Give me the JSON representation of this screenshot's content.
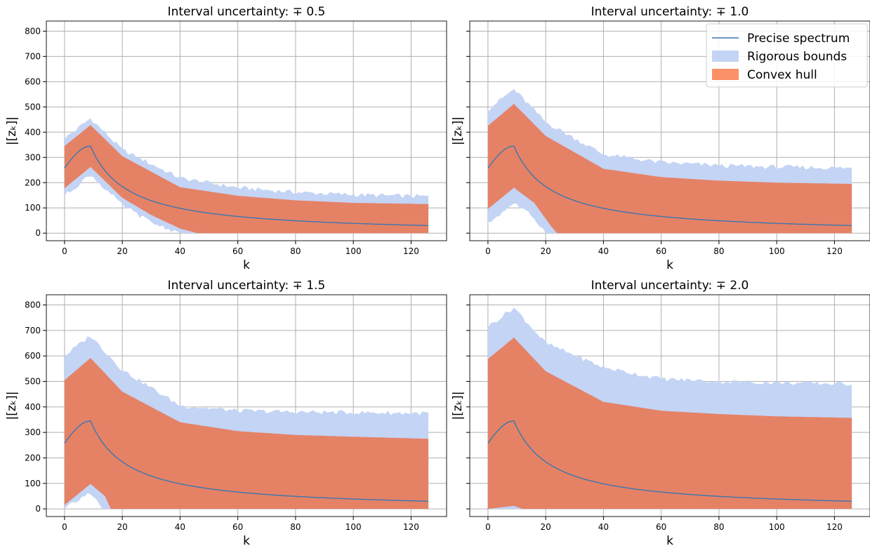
{
  "figure": {
    "legend": {
      "placement": "upper-right of top-right subplot",
      "entries": [
        "Precise spectrum",
        "Rigorous bounds",
        "Convex hull"
      ]
    },
    "colors": {
      "precise": "#3b76af",
      "rigorous": "#c3d4f5",
      "hull": "#e58266",
      "hull_legend": "#fb9167",
      "grid": "#b0b0b0"
    }
  },
  "chart_data": [
    {
      "type": "area",
      "title": "Interval uncertainty: ∓ 0.5",
      "xlabel": "k",
      "ylabel": "|[z_k]|",
      "ylabel_display": "|[zₖ]|",
      "xlim": [
        -6.3,
        132.3
      ],
      "ylim": [
        -30,
        840
      ],
      "xticks": [
        0,
        20,
        40,
        60,
        80,
        100,
        120
      ],
      "yticks": [
        0,
        100,
        200,
        300,
        400,
        500,
        600,
        700,
        800
      ],
      "show_y_ticklabels": true,
      "show_legend": false,
      "grid": true,
      "x_range": [
        0,
        126
      ],
      "precise": {
        "start": 258,
        "peak_k": 9,
        "peak": 345,
        "end": 30
      },
      "hull_upper": [
        [
          0,
          345
        ],
        [
          9,
          428
        ],
        [
          20,
          305
        ],
        [
          40,
          182
        ],
        [
          60,
          148
        ],
        [
          80,
          130
        ],
        [
          100,
          120
        ],
        [
          126,
          115
        ]
      ],
      "hull_lower": [
        [
          0,
          178
        ],
        [
          9,
          262
        ],
        [
          20,
          140
        ],
        [
          30,
          72
        ],
        [
          40,
          18
        ],
        [
          46,
          0
        ],
        [
          126,
          0
        ]
      ],
      "rigorous_upper": [
        [
          0,
          375
        ],
        [
          9,
          455
        ],
        [
          20,
          330
        ],
        [
          40,
          218
        ],
        [
          60,
          180
        ],
        [
          80,
          162
        ],
        [
          100,
          152
        ],
        [
          126,
          145
        ]
      ],
      "rigorous_lower": [
        [
          0,
          148
        ],
        [
          9,
          232
        ],
        [
          20,
          110
        ],
        [
          30,
          42
        ],
        [
          40,
          0
        ],
        [
          126,
          0
        ]
      ]
    },
    {
      "type": "area",
      "title": "Interval uncertainty: ∓ 1.0",
      "xlabel": "k",
      "ylabel": "|[z_k]|",
      "ylabel_display": "|[zₖ]|",
      "xlim": [
        -6.3,
        132.3
      ],
      "ylim": [
        -30,
        840
      ],
      "xticks": [
        0,
        20,
        40,
        60,
        80,
        100,
        120
      ],
      "yticks": [
        0,
        100,
        200,
        300,
        400,
        500,
        600,
        700,
        800
      ],
      "show_y_ticklabels": false,
      "show_legend": true,
      "grid": true,
      "x_range": [
        0,
        126
      ],
      "precise": {
        "start": 258,
        "peak_k": 9,
        "peak": 345,
        "end": 30
      },
      "hull_upper": [
        [
          0,
          425
        ],
        [
          9,
          512
        ],
        [
          20,
          385
        ],
        [
          40,
          255
        ],
        [
          60,
          222
        ],
        [
          80,
          208
        ],
        [
          100,
          200
        ],
        [
          126,
          195
        ]
      ],
      "hull_lower": [
        [
          0,
          96
        ],
        [
          9,
          180
        ],
        [
          16,
          120
        ],
        [
          22,
          25
        ],
        [
          24,
          0
        ],
        [
          126,
          0
        ]
      ],
      "rigorous_upper": [
        [
          0,
          490
        ],
        [
          9,
          570
        ],
        [
          20,
          440
        ],
        [
          40,
          312
        ],
        [
          60,
          280
        ],
        [
          80,
          268
        ],
        [
          100,
          262
        ],
        [
          126,
          258
        ]
      ],
      "rigorous_lower": [
        [
          0,
          38
        ],
        [
          9,
          120
        ],
        [
          16,
          60
        ],
        [
          20,
          0
        ],
        [
          126,
          0
        ]
      ]
    },
    {
      "type": "area",
      "title": "Interval uncertainty: ∓ 1.5",
      "xlabel": "k",
      "ylabel": "|[z_k]|",
      "ylabel_display": "|[zₖ]|",
      "xlim": [
        -6.3,
        132.3
      ],
      "ylim": [
        -30,
        840
      ],
      "xticks": [
        0,
        20,
        40,
        60,
        80,
        100,
        120
      ],
      "yticks": [
        0,
        100,
        200,
        300,
        400,
        500,
        600,
        700,
        800
      ],
      "show_y_ticklabels": true,
      "show_legend": false,
      "grid": true,
      "x_range": [
        0,
        126
      ],
      "precise": {
        "start": 258,
        "peak_k": 9,
        "peak": 345,
        "end": 30
      },
      "hull_upper": [
        [
          0,
          505
        ],
        [
          9,
          592
        ],
        [
          20,
          460
        ],
        [
          40,
          340
        ],
        [
          60,
          305
        ],
        [
          80,
          290
        ],
        [
          100,
          283
        ],
        [
          126,
          275
        ]
      ],
      "hull_lower": [
        [
          0,
          15
        ],
        [
          9,
          98
        ],
        [
          14,
          50
        ],
        [
          16,
          0
        ],
        [
          126,
          0
        ]
      ],
      "rigorous_upper": [
        [
          0,
          600
        ],
        [
          9,
          680
        ],
        [
          20,
          545
        ],
        [
          40,
          405
        ],
        [
          60,
          385
        ],
        [
          80,
          380
        ],
        [
          100,
          378
        ],
        [
          126,
          375
        ]
      ],
      "rigorous_lower": [
        [
          0,
          0
        ],
        [
          9,
          65
        ],
        [
          13,
          0
        ],
        [
          126,
          0
        ]
      ]
    },
    {
      "type": "area",
      "title": "Interval uncertainty: ∓ 2.0",
      "xlabel": "k",
      "ylabel": "|[z_k]|",
      "ylabel_display": "|[zₖ]|",
      "xlim": [
        -6.3,
        132.3
      ],
      "ylim": [
        -30,
        840
      ],
      "xticks": [
        0,
        20,
        40,
        60,
        80,
        100,
        120
      ],
      "yticks": [
        0,
        100,
        200,
        300,
        400,
        500,
        600,
        700,
        800
      ],
      "show_y_ticklabels": false,
      "show_legend": false,
      "grid": true,
      "x_range": [
        0,
        126
      ],
      "precise": {
        "start": 258,
        "peak_k": 9,
        "peak": 345,
        "end": 30
      },
      "hull_upper": [
        [
          0,
          588
        ],
        [
          9,
          672
        ],
        [
          20,
          540
        ],
        [
          40,
          420
        ],
        [
          60,
          385
        ],
        [
          80,
          372
        ],
        [
          100,
          363
        ],
        [
          126,
          357
        ]
      ],
      "hull_lower": [
        [
          0,
          0
        ],
        [
          9,
          12
        ],
        [
          12,
          0
        ],
        [
          126,
          0
        ]
      ],
      "rigorous_upper": [
        [
          0,
          715
        ],
        [
          9,
          790
        ],
        [
          20,
          650
        ],
        [
          40,
          555
        ],
        [
          60,
          510
        ],
        [
          80,
          500
        ],
        [
          100,
          495
        ],
        [
          126,
          490
        ]
      ],
      "rigorous_lower": [
        [
          0,
          0
        ],
        [
          126,
          0
        ]
      ]
    }
  ]
}
